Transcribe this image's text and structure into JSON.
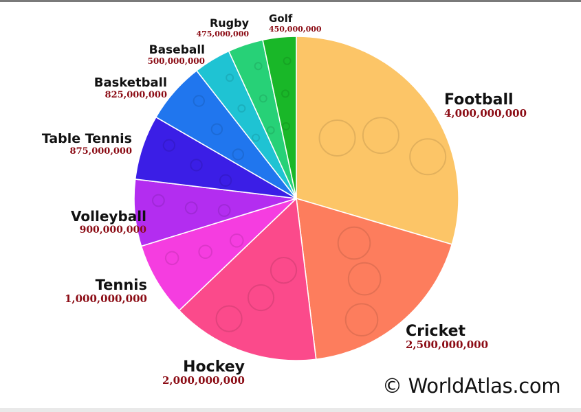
{
  "chart_data": {
    "type": "pie",
    "start_angle_deg": 0,
    "direction": "clockwise",
    "slices": [
      {
        "label": "Football",
        "value_text": "4,000,000,000",
        "value": 4000000000,
        "color": "#fcc567"
      },
      {
        "label": "Cricket",
        "value_text": "2,500,000,000",
        "value": 2500000000,
        "color": "#fd7d5d"
      },
      {
        "label": "Hockey",
        "value_text": "2,000,000,000",
        "value": 2000000000,
        "color": "#fb4a8b"
      },
      {
        "label": "Tennis",
        "value_text": "1,000,000,000",
        "value": 1000000000,
        "color": "#f53de0"
      },
      {
        "label": "Volleyball",
        "value_text": "900,000,000",
        "value": 900000000,
        "color": "#b32df0"
      },
      {
        "label": "Table Tennis",
        "value_text": "875,000,000",
        "value": 875000000,
        "color": "#3b1ee6"
      },
      {
        "label": "Basketball",
        "value_text": "825,000,000",
        "value": 825000000,
        "color": "#2076ee"
      },
      {
        "label": "Baseball",
        "value_text": "500,000,000",
        "value": 500000000,
        "color": "#1fc3d3"
      },
      {
        "label": "Rugby",
        "value_text": "475,000,000",
        "value": 475000000,
        "color": "#27d177"
      },
      {
        "label": "Golf",
        "value_text": "450,000,000",
        "value": 450000000,
        "color": "#19b728"
      }
    ]
  },
  "watermark": "© WorldAtlas.com"
}
